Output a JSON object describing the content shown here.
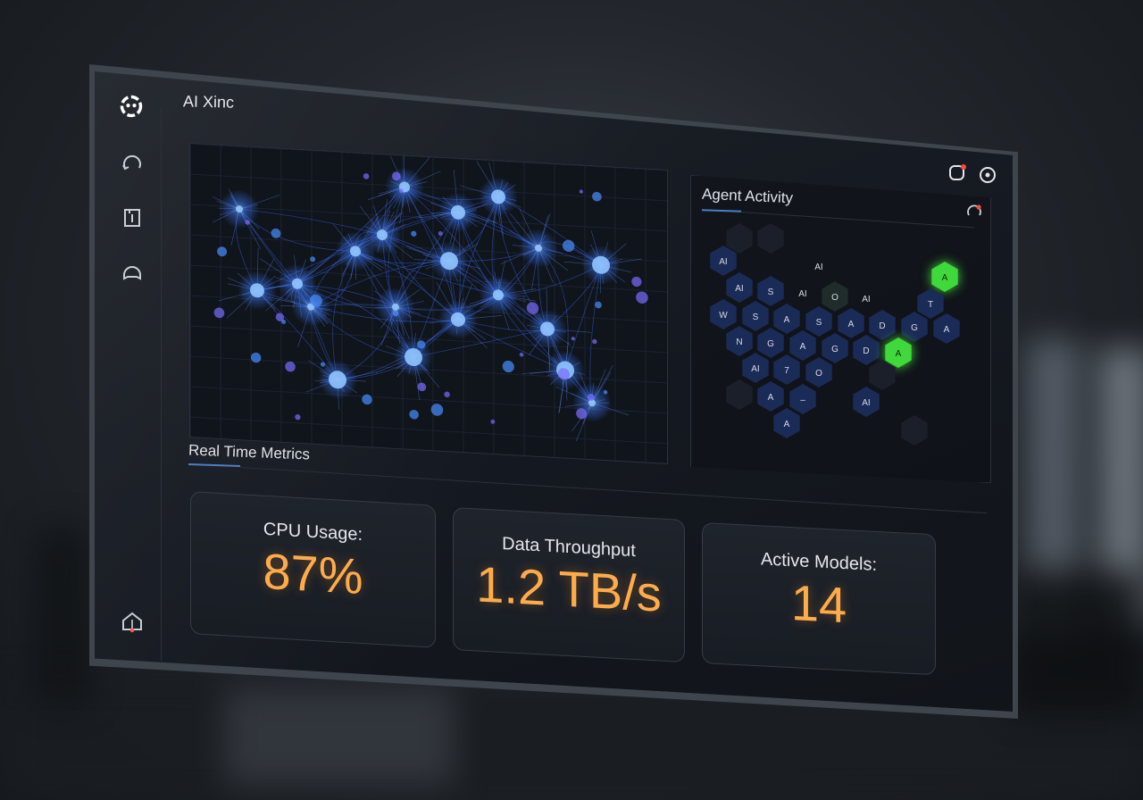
{
  "app": {
    "title": "AI Xinc"
  },
  "sidebar": {
    "items": [
      {
        "name": "logo",
        "icon": "ai-logo-icon"
      },
      {
        "name": "refresh",
        "icon": "refresh-icon"
      },
      {
        "name": "info",
        "icon": "info-card-icon"
      },
      {
        "name": "chat",
        "icon": "chat-bubble-icon"
      },
      {
        "name": "home",
        "icon": "home-network-icon"
      }
    ]
  },
  "header_icons": [
    {
      "name": "notifications",
      "icon": "notification-dot-icon"
    },
    {
      "name": "settings",
      "icon": "circle-dot-icon"
    }
  ],
  "network_panel": {
    "icon": "neural-network-visual"
  },
  "agent_activity": {
    "title": "Agent Activity",
    "hexes": [
      {
        "label": "",
        "state": "idle"
      },
      {
        "label": "",
        "state": "idle"
      },
      {
        "label": "AI",
        "state": "active"
      },
      {
        "label": "AI",
        "state": "plain"
      },
      {
        "label": "A",
        "state": "highlight"
      },
      {
        "label": "AI",
        "state": "active"
      },
      {
        "label": "S",
        "state": "active"
      },
      {
        "label": "AI",
        "state": "plain"
      },
      {
        "label": "O",
        "state": "dim"
      },
      {
        "label": "AI",
        "state": "plain"
      },
      {
        "label": "T",
        "state": "active"
      },
      {
        "label": "W",
        "state": "active"
      },
      {
        "label": "S",
        "state": "active"
      },
      {
        "label": "A",
        "state": "active"
      },
      {
        "label": "S",
        "state": "active"
      },
      {
        "label": "A",
        "state": "active"
      },
      {
        "label": "D",
        "state": "active"
      },
      {
        "label": "G",
        "state": "active"
      },
      {
        "label": "A",
        "state": "active"
      },
      {
        "label": "N",
        "state": "active"
      },
      {
        "label": "G",
        "state": "active"
      },
      {
        "label": "A",
        "state": "active"
      },
      {
        "label": "G",
        "state": "active"
      },
      {
        "label": "D",
        "state": "active"
      },
      {
        "label": "A",
        "state": "highlight"
      },
      {
        "label": "AI",
        "state": "active"
      },
      {
        "label": "7",
        "state": "active"
      },
      {
        "label": "O",
        "state": "active"
      },
      {
        "label": "",
        "state": "idle"
      },
      {
        "label": "",
        "state": "idle"
      },
      {
        "label": "A",
        "state": "active"
      },
      {
        "label": "–",
        "state": "active"
      },
      {
        "label": "AI",
        "state": "active"
      },
      {
        "label": "A",
        "state": "active"
      },
      {
        "label": "",
        "state": "idle"
      }
    ]
  },
  "metrics": {
    "title": "Real Time Metrics",
    "cards": [
      {
        "label": "CPU Usage:",
        "value": "87%"
      },
      {
        "label": "Data Throughput",
        "value": "1.2 TB/s"
      },
      {
        "label": "Active Models:",
        "value": "14"
      }
    ]
  },
  "colors": {
    "accent_orange": "#ffab4a",
    "hex_active": "#1a2a55",
    "hex_highlight": "#3fd93b",
    "network_blue": "#3d7bff"
  }
}
